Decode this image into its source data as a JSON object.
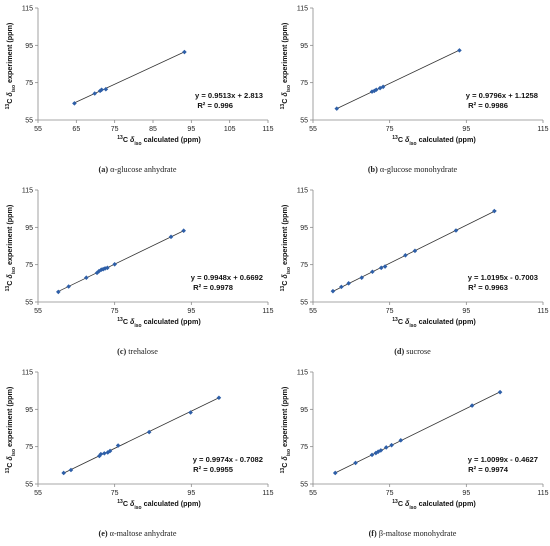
{
  "chart_data": [
    {
      "type": "scatter",
      "caption_letter": "(a)",
      "caption_text": "α-glucose anhydrate",
      "xlabel": "13C δiso calculated (ppm)",
      "ylabel": "13C δiso experiment (ppm)",
      "xlim": [
        55,
        115
      ],
      "ylim": [
        55,
        115
      ],
      "xticks": [
        55,
        65,
        75,
        85,
        95,
        105,
        115
      ],
      "yticks": [
        55,
        75,
        95,
        115
      ],
      "equation": "y = 0.9513x + 2.813",
      "r2": "R² = 0.996",
      "annotation_position": "center-right",
      "points": [
        [
          64.5,
          63.9
        ],
        [
          69.8,
          69.2
        ],
        [
          71.2,
          70.6
        ],
        [
          71.6,
          71.2
        ],
        [
          72.7,
          71.5
        ],
        [
          93.2,
          91.4
        ]
      ],
      "fit": {
        "slope": 0.9513,
        "intercept": 2.813,
        "x_range": [
          64.5,
          93.2
        ]
      }
    },
    {
      "type": "scatter",
      "caption_letter": "(b)",
      "caption_text": "α-glucose monohydrate",
      "xlabel": "13C δiso calculated (ppm)",
      "ylabel": "13C δiso experiment (ppm)",
      "xlim": [
        55,
        115
      ],
      "ylim": [
        55,
        115
      ],
      "xticks": [
        55,
        75,
        95,
        115
      ],
      "yticks": [
        55,
        75,
        95,
        115
      ],
      "equation": "y = 0.9796x + 1.1258",
      "r2": "R² = 0.9986",
      "annotation_position": "center-right",
      "points": [
        [
          61.2,
          61.1
        ],
        [
          70.4,
          70.2
        ],
        [
          71.0,
          70.6
        ],
        [
          71.5,
          71.2
        ],
        [
          72.5,
          72.1
        ],
        [
          73.3,
          72.8
        ],
        [
          93.2,
          92.3
        ]
      ],
      "fit": {
        "slope": 0.9796,
        "intercept": 1.1258,
        "x_range": [
          61.2,
          93.2
        ]
      }
    },
    {
      "type": "scatter",
      "caption_letter": "(c)",
      "caption_text": "trehalose",
      "xlabel": "13C δiso calculated (ppm)",
      "ylabel": "13C δiso experiment (ppm)",
      "xlim": [
        55,
        115
      ],
      "ylim": [
        55,
        115
      ],
      "xticks": [
        55,
        75,
        95,
        115
      ],
      "yticks": [
        55,
        75,
        95,
        115
      ],
      "equation": "y = 0.9948x + 0.6692",
      "r2": "R² = 0.9978",
      "annotation_position": "center-right",
      "points": [
        [
          60.3,
          60.4
        ],
        [
          63.0,
          63.3
        ],
        [
          67.6,
          68.0
        ],
        [
          70.4,
          70.6
        ],
        [
          70.9,
          71.5
        ],
        [
          71.5,
          72.3
        ],
        [
          72.0,
          72.6
        ],
        [
          72.5,
          73.0
        ],
        [
          73.1,
          73.3
        ],
        [
          75.0,
          75.2
        ],
        [
          89.7,
          89.9
        ],
        [
          93.0,
          93.2
        ]
      ],
      "fit": {
        "slope": 0.9948,
        "intercept": 0.6692,
        "x_range": [
          60.3,
          93.2
        ]
      }
    },
    {
      "type": "scatter",
      "caption_letter": "(d)",
      "caption_text": "sucrose",
      "xlabel": "13C δiso calculated (ppm)",
      "ylabel": "13C δiso experiment (ppm)",
      "xlim": [
        55,
        115
      ],
      "ylim": [
        55,
        115
      ],
      "xticks": [
        55,
        75,
        95,
        115
      ],
      "yticks": [
        55,
        75,
        95,
        115
      ],
      "equation": "y = 1.0195x - 0.7003",
      "r2": "R² = 0.9963",
      "annotation_position": "center-right",
      "points": [
        [
          60.2,
          60.8
        ],
        [
          62.4,
          63.1
        ],
        [
          64.3,
          65.0
        ],
        [
          67.7,
          68.0
        ],
        [
          70.5,
          71.2
        ],
        [
          72.8,
          73.3
        ],
        [
          73.8,
          74.0
        ],
        [
          79.1,
          80.0
        ],
        [
          81.6,
          82.4
        ],
        [
          92.3,
          93.3
        ],
        [
          102.3,
          103.7
        ]
      ],
      "fit": {
        "slope": 1.0195,
        "intercept": -0.7003,
        "x_range": [
          60.2,
          102.8
        ]
      }
    },
    {
      "type": "scatter",
      "caption_letter": "(e)",
      "caption_text": "α-maltose anhydrate",
      "xlabel": "13C δiso calculated (ppm)",
      "ylabel": "13C δiso experiment (ppm)",
      "xlim": [
        55,
        115
      ],
      "ylim": [
        55,
        115
      ],
      "xticks": [
        55,
        75,
        95,
        115
      ],
      "yticks": [
        55,
        75,
        95,
        115
      ],
      "equation": "y = 0.9974x - 0.7082",
      "r2": "R² = 0.9955",
      "annotation_position": "center-right",
      "points": [
        [
          61.7,
          60.9
        ],
        [
          63.6,
          62.5
        ],
        [
          71.0,
          70.0
        ],
        [
          71.4,
          71.0
        ],
        [
          72.3,
          71.4
        ],
        [
          73.2,
          71.9
        ],
        [
          73.8,
          72.7
        ],
        [
          75.9,
          75.6
        ],
        [
          84.0,
          82.8
        ],
        [
          94.8,
          93.3
        ],
        [
          102.2,
          101.2
        ]
      ],
      "fit": {
        "slope": 0.9974,
        "intercept": -0.7082,
        "x_range": [
          61.5,
          102.4
        ]
      }
    },
    {
      "type": "scatter",
      "caption_letter": "(f)",
      "caption_text": "β-maltose monohydrate",
      "xlabel": "13C δiso calculated (ppm)",
      "ylabel": "13C δiso experiment (ppm)",
      "xlim": [
        55,
        115
      ],
      "ylim": [
        55,
        115
      ],
      "xticks": [
        55,
        75,
        95,
        115
      ],
      "yticks": [
        55,
        75,
        95,
        115
      ],
      "equation": "y = 1.0099x - 0.4627",
      "r2": "R² = 0.9974",
      "annotation_position": "center-right",
      "points": [
        [
          60.8,
          60.9
        ],
        [
          66.1,
          66.3
        ],
        [
          70.4,
          70.6
        ],
        [
          71.4,
          71.6
        ],
        [
          72.0,
          72.3
        ],
        [
          72.7,
          73.0
        ],
        [
          74.1,
          74.6
        ],
        [
          75.5,
          75.8
        ],
        [
          77.9,
          78.4
        ],
        [
          96.5,
          97.0
        ],
        [
          103.8,
          104.2
        ]
      ],
      "fit": {
        "slope": 1.0099,
        "intercept": -0.4627,
        "x_range": [
          60.8,
          103.8
        ]
      }
    }
  ]
}
